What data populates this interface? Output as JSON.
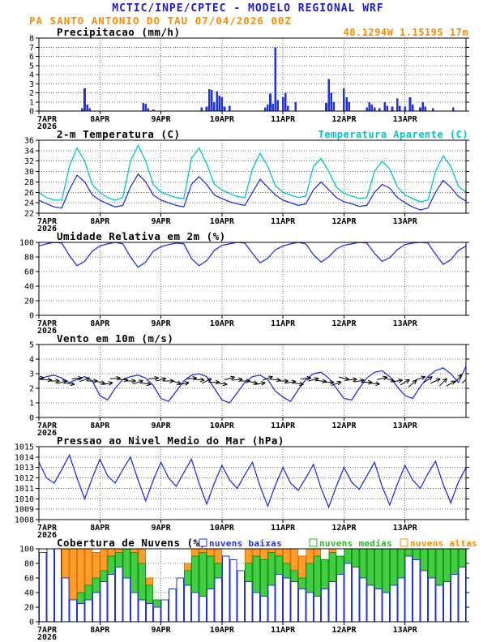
{
  "header": {
    "line1": "MCTIC/INPE/CPTEC - MODELO REGIONAL WRF",
    "line2": "PA SANTO ANTONIO DO TAU   07/04/2026 00Z"
  },
  "colors": {
    "title_blue": "#1a1ad1",
    "orange": "#ff8c00",
    "line_blue": "#2233dd",
    "cyan": "#00c8c8",
    "green": "#22bb22",
    "grid": "#777777"
  },
  "time": {
    "hours_total": 168,
    "xticks": [
      {
        "h": 0,
        "label": "7APR",
        "sub": "2026"
      },
      {
        "h": 24,
        "label": "8APR"
      },
      {
        "h": 48,
        "label": "9APR"
      },
      {
        "h": 72,
        "label": "10APR"
      },
      {
        "h": 96,
        "label": "11APR"
      },
      {
        "h": 120,
        "label": "12APR"
      },
      {
        "h": 144,
        "label": "13APR"
      }
    ]
  },
  "chart_data": [
    {
      "id": "precipitation",
      "type": "bar",
      "title": "Precipitacao (mm/h)",
      "right_label": "48.1294W 1.1519S 17m",
      "right_label_color": "#ff8c00",
      "ylim": [
        0,
        8
      ],
      "yticks": [
        0,
        1,
        2,
        3,
        4,
        5,
        6,
        7,
        8
      ],
      "bar_color": "#2233dd",
      "bars": [
        [
          17,
          0.3
        ],
        [
          18,
          2.5
        ],
        [
          19,
          0.7
        ],
        [
          20,
          0.3
        ],
        [
          41,
          0.9
        ],
        [
          42,
          0.8
        ],
        [
          43,
          0.3
        ],
        [
          45,
          0.2
        ],
        [
          64,
          0.4
        ],
        [
          66,
          0.5
        ],
        [
          67,
          2.4
        ],
        [
          68,
          2.3
        ],
        [
          69,
          1.0
        ],
        [
          70,
          2.2
        ],
        [
          71,
          1.7
        ],
        [
          72,
          1.5
        ],
        [
          73,
          0.5
        ],
        [
          75,
          0.6
        ],
        [
          89,
          0.4
        ],
        [
          90,
          0.7
        ],
        [
          91,
          1.9
        ],
        [
          92,
          0.8
        ],
        [
          93,
          7.0
        ],
        [
          94,
          1.2
        ],
        [
          96,
          1.5
        ],
        [
          97,
          2.0
        ],
        [
          98,
          0.6
        ],
        [
          101,
          1.0
        ],
        [
          113,
          0.9
        ],
        [
          114,
          3.5
        ],
        [
          115,
          2.0
        ],
        [
          116,
          1.0
        ],
        [
          120,
          2.5
        ],
        [
          121,
          1.5
        ],
        [
          122,
          1.0
        ],
        [
          129,
          0.4
        ],
        [
          130,
          1.0
        ],
        [
          131,
          0.7
        ],
        [
          132,
          0.4
        ],
        [
          134,
          0.3
        ],
        [
          136,
          1.0
        ],
        [
          137,
          0.6
        ],
        [
          139,
          0.5
        ],
        [
          141,
          1.4
        ],
        [
          142,
          0.6
        ],
        [
          144,
          0.5
        ],
        [
          146,
          1.5
        ],
        [
          147,
          0.7
        ],
        [
          150,
          0.4
        ],
        [
          151,
          1.0
        ],
        [
          152,
          0.5
        ],
        [
          155,
          0.3
        ],
        [
          163,
          0.4
        ]
      ]
    },
    {
      "id": "temperature",
      "type": "line",
      "title": "2-m Temperatura (C)",
      "right_label": "Temperatura Aparente (C)",
      "right_label_color": "#00c8c8",
      "ylim": [
        22,
        36
      ],
      "yticks": [
        22,
        24,
        26,
        28,
        30,
        32,
        34,
        36
      ],
      "step": 3,
      "series": [
        {
          "name": "Temperatura Aparente (C)",
          "color": "#00c8c8",
          "values": [
            26.0,
            25.0,
            24.5,
            24.5,
            31.0,
            34.5,
            32.0,
            27.5,
            26.0,
            25.0,
            24.5,
            25.0,
            32.0,
            35.0,
            32.0,
            27.5,
            26.0,
            25.5,
            25.0,
            24.8,
            32.5,
            34.5,
            31.5,
            27.5,
            26.5,
            25.8,
            25.2,
            25.0,
            30.5,
            33.5,
            31.0,
            27.3,
            26.0,
            25.5,
            25.0,
            25.3,
            31.0,
            32.5,
            30.0,
            27.0,
            25.8,
            25.3,
            24.8,
            25.0,
            30.0,
            32.0,
            30.5,
            27.0,
            25.5,
            24.8,
            24.2,
            24.5,
            30.0,
            33.0,
            31.0,
            27.2,
            26.0
          ]
        },
        {
          "name": "2-m Temperatura (C)",
          "color": "#2233dd",
          "values": [
            24.5,
            23.8,
            23.2,
            23.0,
            26.5,
            29.3,
            28.0,
            25.5,
            24.5,
            23.8,
            23.2,
            23.5,
            27.0,
            29.5,
            28.0,
            25.5,
            24.5,
            24.0,
            23.5,
            23.2,
            27.5,
            29.0,
            27.5,
            25.5,
            24.8,
            24.2,
            23.8,
            23.5,
            26.0,
            28.5,
            27.0,
            25.5,
            24.5,
            24.0,
            23.5,
            23.8,
            26.5,
            28.0,
            26.5,
            25.0,
            24.2,
            23.8,
            23.3,
            23.5,
            26.0,
            27.5,
            26.8,
            25.0,
            24.0,
            23.2,
            22.6,
            23.0,
            26.0,
            28.3,
            27.0,
            25.2,
            24.3
          ]
        }
      ]
    },
    {
      "id": "humidity",
      "type": "line",
      "title": "Umidade Relativa em 2m (%)",
      "ylim": [
        0,
        100
      ],
      "yticks": [
        0,
        20,
        40,
        60,
        80,
        100
      ],
      "step": 3,
      "series": [
        {
          "name": "Umidade Relativa em 2m (%)",
          "color": "#2233dd",
          "values": [
            95,
            98,
            100,
            99,
            82,
            68,
            74,
            88,
            95,
            98,
            100,
            98,
            80,
            66,
            73,
            88,
            94,
            97,
            99,
            98,
            78,
            68,
            75,
            89,
            96,
            98,
            100,
            99,
            85,
            72,
            78,
            90,
            95,
            98,
            100,
            98,
            83,
            73,
            80,
            91,
            96,
            98,
            100,
            99,
            85,
            74,
            79,
            90,
            97,
            99,
            100,
            99,
            84,
            70,
            76,
            89,
            95
          ]
        }
      ]
    },
    {
      "id": "wind",
      "type": "line",
      "title": "Vento em 10m (m/s)",
      "ylim": [
        0,
        5
      ],
      "yticks": [
        0,
        1,
        2,
        3,
        4,
        5
      ],
      "step": 3,
      "series": [
        {
          "name": "Vento em 10m (m/s)",
          "color": "#2233dd",
          "values": [
            2.6,
            2.8,
            2.9,
            2.7,
            2.4,
            2.6,
            2.8,
            2.5,
            1.5,
            1.2,
            2.0,
            2.6,
            2.8,
            2.9,
            2.7,
            2.2,
            1.3,
            1.1,
            1.8,
            2.5,
            2.9,
            3.0,
            2.8,
            2.0,
            1.2,
            1.0,
            1.7,
            2.4,
            2.8,
            2.9,
            2.6,
            1.8,
            1.4,
            1.1,
            1.9,
            2.6,
            3.0,
            3.1,
            2.7,
            2.0,
            1.3,
            1.2,
            2.0,
            2.7,
            3.1,
            3.2,
            2.8,
            2.1,
            1.5,
            1.3,
            2.1,
            2.8,
            3.2,
            3.4,
            3.0,
            2.4,
            3.5
          ]
        }
      ],
      "barbs": {
        "y": 2.5,
        "step": 3,
        "color": "#000000",
        "angles": [
          10,
          -5,
          0,
          15,
          -10,
          5,
          20,
          0,
          -15,
          10,
          5,
          -5,
          0,
          20,
          -10,
          5,
          15,
          0,
          -20,
          10,
          5,
          -5,
          25,
          0,
          -10,
          15,
          5,
          0,
          -15,
          10,
          20,
          -5,
          0,
          10,
          -10,
          5,
          15,
          -5,
          0,
          20,
          -15,
          5,
          10,
          0,
          -5,
          15,
          -20,
          10,
          30,
          40,
          20,
          35,
          25,
          45,
          30,
          50,
          40
        ]
      }
    },
    {
      "id": "pressure",
      "type": "line",
      "title": "Pressao ao Nivel Medio do Mar (hPa)",
      "ylim": [
        1008,
        1015
      ],
      "yticks": [
        1008,
        1009,
        1010,
        1011,
        1012,
        1013,
        1014,
        1015
      ],
      "step": 3,
      "series": [
        {
          "name": "Pressao ao Nivel Medio do Mar (hPa)",
          "color": "#2233dd",
          "values": [
            1013.5,
            1012.0,
            1011.5,
            1012.8,
            1014.2,
            1012.0,
            1010.0,
            1012.0,
            1013.8,
            1012.2,
            1011.5,
            1012.8,
            1014.0,
            1011.8,
            1009.8,
            1011.8,
            1013.5,
            1012.0,
            1011.2,
            1012.5,
            1013.8,
            1011.5,
            1009.5,
            1011.5,
            1013.2,
            1011.8,
            1011.0,
            1012.3,
            1013.5,
            1011.2,
            1009.3,
            1011.3,
            1013.0,
            1011.5,
            1010.8,
            1012.0,
            1013.3,
            1011.0,
            1009.2,
            1011.2,
            1013.0,
            1011.6,
            1010.9,
            1012.2,
            1013.5,
            1011.2,
            1009.4,
            1011.4,
            1013.2,
            1011.8,
            1011.0,
            1012.4,
            1013.6,
            1011.4,
            1009.6,
            1011.6,
            1013.0
          ]
        }
      ]
    },
    {
      "id": "clouds",
      "type": "cloudbar",
      "title": "Cobertura de Nuvens (%)",
      "ylim": [
        0,
        100
      ],
      "yticks": [
        0,
        20,
        40,
        60,
        80,
        100
      ],
      "step": 3,
      "legend": [
        {
          "label": "nuvens baixas",
          "color": "#2233dd"
        },
        {
          "label": "nuvens medias",
          "color": "#22bb22"
        },
        {
          "label": "nuvens altas",
          "color": "#ff8c00"
        }
      ],
      "series": [
        {
          "name": "nuvens altas",
          "color": "#ff8c00",
          "fill": "#ff9d2e",
          "outline": "#e07800",
          "values": [
            90,
            95,
            100,
            100,
            100,
            100,
            100,
            95,
            100,
            100,
            100,
            90,
            100,
            100,
            60,
            20,
            10,
            5,
            30,
            80,
            100,
            100,
            100,
            100,
            30,
            10,
            60,
            100,
            100,
            100,
            100,
            100,
            100,
            100,
            90,
            100,
            100,
            80,
            100,
            60,
            20,
            10,
            5,
            0,
            0,
            0,
            0,
            0,
            0,
            0,
            0,
            0,
            0,
            0,
            0,
            0,
            0
          ]
        },
        {
          "name": "nuvens medias",
          "color": "#22bb22",
          "fill": "#44cc44",
          "outline": "#119911",
          "values": [
            40,
            50,
            30,
            20,
            30,
            40,
            50,
            60,
            70,
            90,
            95,
            100,
            95,
            80,
            50,
            30,
            20,
            15,
            40,
            70,
            90,
            95,
            90,
            80,
            50,
            30,
            60,
            80,
            90,
            85,
            95,
            90,
            80,
            70,
            60,
            80,
            90,
            85,
            95,
            90,
            100,
            100,
            100,
            100,
            100,
            100,
            100,
            100,
            100,
            100,
            100,
            100,
            100,
            100,
            100,
            100,
            100
          ]
        },
        {
          "name": "nuvens baixas",
          "color": "#2233dd",
          "fill": "#ffffff",
          "outline": "#2233dd",
          "values": [
            95,
            100,
            100,
            60,
            30,
            25,
            30,
            40,
            55,
            65,
            75,
            60,
            40,
            30,
            25,
            20,
            30,
            45,
            60,
            50,
            40,
            35,
            45,
            60,
            90,
            85,
            70,
            55,
            40,
            35,
            50,
            65,
            60,
            55,
            45,
            40,
            35,
            45,
            55,
            65,
            80,
            75,
            60,
            50,
            45,
            40,
            50,
            60,
            90,
            85,
            70,
            60,
            50,
            55,
            65,
            75,
            80
          ]
        }
      ]
    }
  ]
}
